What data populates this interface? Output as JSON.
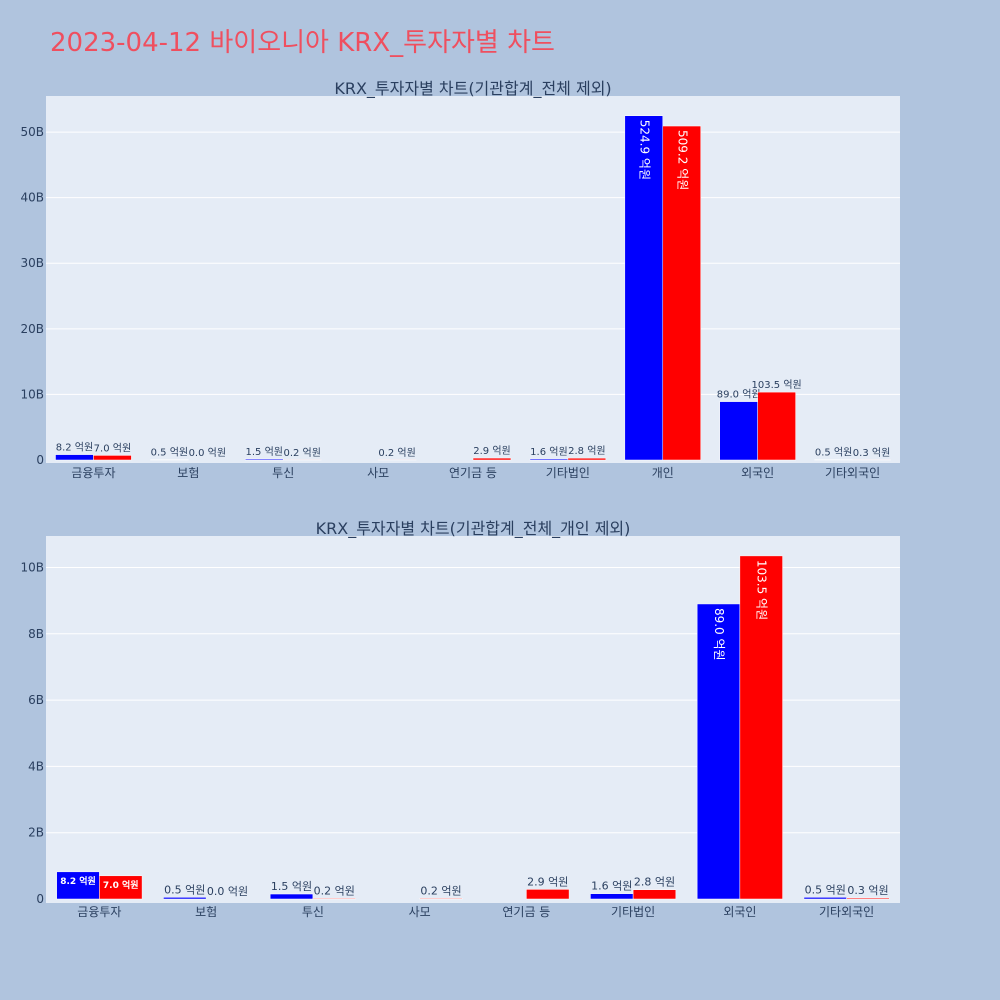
{
  "page": {
    "title": "2023-04-12 바이오니아 KRX_투자자별 차트"
  },
  "colors": {
    "background": "#b0c4de",
    "plot_bg": "#e5ecf6",
    "grid": "#ffffff",
    "title": "#ef4f5f",
    "text": "#2a3f5f",
    "series_buy": "#0000ff",
    "series_sell": "#ff0000"
  },
  "chart_data": [
    {
      "type": "bar",
      "title": "KRX_투자자별 차트(기관합계_전체 제외)",
      "categories": [
        "금융투자",
        "보험",
        "투신",
        "사모",
        "연기금 등",
        "기타법인",
        "개인",
        "외국인",
        "기타외국인"
      ],
      "series": [
        {
          "color": "#0000ff",
          "values": [
            0.82,
            0.05,
            0.15,
            0.0,
            0.0,
            0.16,
            52.49,
            8.9,
            0.05
          ],
          "labels": [
            "8.2 억원",
            "0.5 억원",
            "1.5 억원",
            "",
            "",
            "1.6 억원",
            "524.9 억원",
            "89.0 억원",
            "0.5 억원"
          ]
        },
        {
          "color": "#ff0000",
          "values": [
            0.7,
            0.0,
            0.02,
            0.02,
            0.29,
            0.28,
            50.92,
            10.35,
            0.03
          ],
          "labels": [
            "7.0 억원",
            "0.0 억원",
            "0.2 억원",
            "0.2 억원",
            "2.9 억원",
            "2.8 억원",
            "509.2 억원",
            "103.5 억원",
            "0.3 억원"
          ]
        }
      ],
      "yticks": [
        0,
        10,
        20,
        30,
        40,
        50
      ],
      "ytick_labels": [
        "0",
        "10B",
        "20B",
        "30B",
        "40B",
        "50B"
      ],
      "ylim": [
        0,
        55.5
      ],
      "grid": true
    },
    {
      "type": "bar",
      "title": "KRX_투자자별 차트(기관합계_전체_개인 제외)",
      "categories": [
        "금융투자",
        "보험",
        "투신",
        "사모",
        "연기금 등",
        "기타법인",
        "외국인",
        "기타외국인"
      ],
      "series": [
        {
          "color": "#0000ff",
          "values": [
            0.82,
            0.05,
            0.15,
            0.0,
            0.0,
            0.16,
            8.9,
            0.05
          ],
          "labels": [
            "8.2 억원",
            "0.5 억원",
            "1.5 억원",
            "",
            "",
            "1.6 억원",
            "89.0 억원",
            "0.5 억원"
          ]
        },
        {
          "color": "#ff0000",
          "values": [
            0.7,
            0.0,
            0.02,
            0.02,
            0.29,
            0.28,
            10.35,
            0.03
          ],
          "labels": [
            "7.0 억원",
            "0.0 억원",
            "0.2 억원",
            "0.2 억원",
            "2.9 억원",
            "2.8 억원",
            "103.5 억원",
            "0.3 억원"
          ]
        }
      ],
      "yticks": [
        0,
        2,
        4,
        6,
        8,
        10
      ],
      "ytick_labels": [
        "0",
        "2B",
        "4B",
        "6B",
        "8B",
        "10B"
      ],
      "ylim": [
        0,
        10.95
      ],
      "grid": true
    }
  ]
}
